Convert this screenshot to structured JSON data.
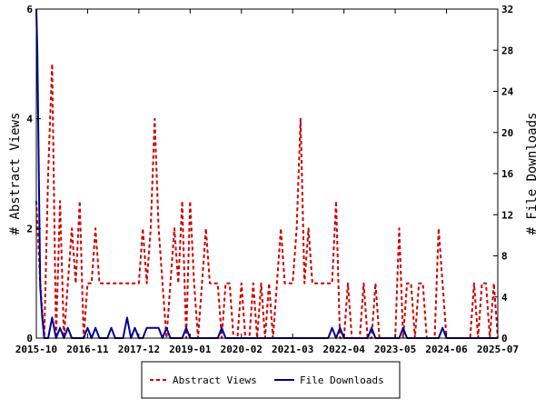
{
  "chart_data": {
    "type": "line",
    "title": "",
    "xlabel": "",
    "ylabel": "# Abstract Views",
    "y2label": "# File Downloads",
    "ylim": [
      0,
      6
    ],
    "y2lim": [
      0,
      32
    ],
    "yticks": [
      0,
      2,
      4,
      6
    ],
    "y2ticks": [
      0,
      4,
      8,
      12,
      16,
      20,
      24,
      28,
      32
    ],
    "x_ticks": [
      "2015-10",
      "2016-11",
      "2017-12",
      "2019-01",
      "2020-02",
      "2021-03",
      "2022-04",
      "2023-05",
      "2024-06",
      "2025-07"
    ],
    "x_range_months": [
      0,
      117
    ],
    "grid": false,
    "legend_position": "bottom",
    "colors": {
      "abstract_views": "#cc0000",
      "file_downloads": "#000099"
    },
    "series": [
      {
        "name": "Abstract Views",
        "axis": "left",
        "style": "dashed",
        "points": [
          [
            0,
            2.5
          ],
          [
            1,
            1
          ],
          [
            2,
            0
          ],
          [
            3,
            3
          ],
          [
            4,
            5
          ],
          [
            5,
            0
          ],
          [
            6,
            2.5
          ],
          [
            7,
            0
          ],
          [
            8,
            1
          ],
          [
            9,
            2
          ],
          [
            10,
            1
          ],
          [
            11,
            2.5
          ],
          [
            12,
            0
          ],
          [
            13,
            1
          ],
          [
            14,
            1
          ],
          [
            15,
            2
          ],
          [
            16,
            1
          ],
          [
            17,
            1
          ],
          [
            18,
            1
          ],
          [
            19,
            1
          ],
          [
            20,
            1
          ],
          [
            21,
            1
          ],
          [
            22,
            1
          ],
          [
            23,
            1
          ],
          [
            24,
            1
          ],
          [
            25,
            1
          ],
          [
            26,
            1
          ],
          [
            27,
            2
          ],
          [
            28,
            1
          ],
          [
            29,
            2
          ],
          [
            30,
            4
          ],
          [
            31,
            2
          ],
          [
            32,
            1
          ],
          [
            33,
            0
          ],
          [
            34,
            1
          ],
          [
            35,
            2
          ],
          [
            36,
            1
          ],
          [
            37,
            2.5
          ],
          [
            38,
            0
          ],
          [
            39,
            2.5
          ],
          [
            40,
            1
          ],
          [
            41,
            0
          ],
          [
            42,
            1
          ],
          [
            43,
            2
          ],
          [
            44,
            1
          ],
          [
            45,
            1
          ],
          [
            46,
            1
          ],
          [
            47,
            0
          ],
          [
            48,
            1
          ],
          [
            49,
            1
          ],
          [
            50,
            0
          ],
          [
            51,
            0
          ],
          [
            52,
            1
          ],
          [
            53,
            0
          ],
          [
            54,
            0
          ],
          [
            55,
            1
          ],
          [
            56,
            0
          ],
          [
            57,
            1
          ],
          [
            58,
            0
          ],
          [
            59,
            1
          ],
          [
            60,
            0
          ],
          [
            61,
            1
          ],
          [
            62,
            2
          ],
          [
            63,
            1
          ],
          [
            64,
            1
          ],
          [
            65,
            1
          ],
          [
            66,
            2
          ],
          [
            67,
            4
          ],
          [
            68,
            1
          ],
          [
            69,
            2
          ],
          [
            70,
            1
          ],
          [
            71,
            1
          ],
          [
            72,
            1
          ],
          [
            73,
            1
          ],
          [
            74,
            1
          ],
          [
            75,
            1
          ],
          [
            76,
            2.5
          ],
          [
            77,
            0
          ],
          [
            78,
            0
          ],
          [
            79,
            1
          ],
          [
            80,
            0
          ],
          [
            81,
            0
          ],
          [
            82,
            0
          ],
          [
            83,
            1
          ],
          [
            84,
            0
          ],
          [
            85,
            0
          ],
          [
            86,
            1
          ],
          [
            87,
            0
          ],
          [
            88,
            0
          ],
          [
            89,
            0
          ],
          [
            90,
            0
          ],
          [
            91,
            0
          ],
          [
            92,
            2
          ],
          [
            93,
            0
          ],
          [
            94,
            1
          ],
          [
            95,
            1
          ],
          [
            96,
            0
          ],
          [
            97,
            1
          ],
          [
            98,
            1
          ],
          [
            99,
            0
          ],
          [
            100,
            0
          ],
          [
            101,
            0
          ],
          [
            102,
            2
          ],
          [
            103,
            1
          ],
          [
            104,
            0
          ],
          [
            105,
            0
          ],
          [
            106,
            0
          ],
          [
            107,
            0
          ],
          [
            108,
            0
          ],
          [
            109,
            0
          ],
          [
            110,
            0
          ],
          [
            111,
            1
          ],
          [
            112,
            0
          ],
          [
            113,
            1
          ],
          [
            114,
            1
          ],
          [
            115,
            0
          ],
          [
            116,
            1
          ],
          [
            117,
            0
          ]
        ]
      },
      {
        "name": "File Downloads",
        "axis": "right",
        "style": "solid",
        "points": [
          [
            0,
            32
          ],
          [
            0.25,
            28
          ],
          [
            0.5,
            20
          ],
          [
            0.75,
            12
          ],
          [
            1,
            5
          ],
          [
            1.5,
            2
          ],
          [
            2,
            0
          ],
          [
            3,
            0
          ],
          [
            4,
            2
          ],
          [
            5,
            0
          ],
          [
            6,
            1
          ],
          [
            7,
            0
          ],
          [
            8,
            1
          ],
          [
            9,
            0
          ],
          [
            10,
            0
          ],
          [
            11,
            0
          ],
          [
            12,
            0
          ],
          [
            13,
            1
          ],
          [
            14,
            0
          ],
          [
            15,
            1
          ],
          [
            16,
            0
          ],
          [
            17,
            0
          ],
          [
            18,
            0
          ],
          [
            19,
            1
          ],
          [
            20,
            0
          ],
          [
            21,
            0
          ],
          [
            22,
            0
          ],
          [
            23,
            2
          ],
          [
            24,
            0
          ],
          [
            25,
            1
          ],
          [
            26,
            0
          ],
          [
            27,
            0
          ],
          [
            28,
            1
          ],
          [
            29,
            1
          ],
          [
            30,
            1
          ],
          [
            31,
            1
          ],
          [
            32,
            0
          ],
          [
            33,
            1
          ],
          [
            34,
            0
          ],
          [
            35,
            0
          ],
          [
            36,
            0
          ],
          [
            37,
            0
          ],
          [
            38,
            1
          ],
          [
            39,
            0
          ],
          [
            40,
            0
          ],
          [
            41,
            0
          ],
          [
            42,
            0
          ],
          [
            43,
            0
          ],
          [
            44,
            0
          ],
          [
            45,
            0
          ],
          [
            46,
            0
          ],
          [
            47,
            1
          ],
          [
            48,
            0
          ],
          [
            49,
            0
          ],
          [
            50,
            0
          ],
          [
            51,
            0
          ],
          [
            52,
            0
          ],
          [
            53,
            0
          ],
          [
            54,
            0
          ],
          [
            55,
            0
          ],
          [
            56,
            0
          ],
          [
            57,
            0
          ],
          [
            58,
            0
          ],
          [
            59,
            0
          ],
          [
            60,
            0
          ],
          [
            61,
            0
          ],
          [
            62,
            0
          ],
          [
            63,
            0
          ],
          [
            64,
            0
          ],
          [
            65,
            0
          ],
          [
            66,
            0
          ],
          [
            67,
            0
          ],
          [
            68,
            0
          ],
          [
            69,
            0
          ],
          [
            70,
            0
          ],
          [
            71,
            0
          ],
          [
            72,
            0
          ],
          [
            73,
            0
          ],
          [
            74,
            0
          ],
          [
            75,
            1
          ],
          [
            76,
            0
          ],
          [
            77,
            1
          ],
          [
            78,
            0
          ],
          [
            79,
            0
          ],
          [
            80,
            0
          ],
          [
            81,
            0
          ],
          [
            82,
            0
          ],
          [
            83,
            0
          ],
          [
            84,
            0
          ],
          [
            85,
            1
          ],
          [
            86,
            0
          ],
          [
            87,
            0
          ],
          [
            88,
            0
          ],
          [
            89,
            0
          ],
          [
            90,
            0
          ],
          [
            91,
            0
          ],
          [
            92,
            0
          ],
          [
            93,
            1
          ],
          [
            94,
            0
          ],
          [
            95,
            0
          ],
          [
            96,
            0
          ],
          [
            97,
            0
          ],
          [
            98,
            0
          ],
          [
            99,
            0
          ],
          [
            100,
            0
          ],
          [
            101,
            0
          ],
          [
            102,
            0
          ],
          [
            103,
            1
          ],
          [
            104,
            0
          ],
          [
            105,
            0
          ],
          [
            106,
            0
          ],
          [
            107,
            0
          ],
          [
            108,
            0
          ],
          [
            109,
            0
          ],
          [
            110,
            0
          ],
          [
            111,
            0
          ],
          [
            112,
            0
          ],
          [
            113,
            0
          ],
          [
            114,
            0
          ],
          [
            115,
            0
          ],
          [
            116,
            0
          ],
          [
            117,
            0
          ]
        ]
      }
    ]
  }
}
